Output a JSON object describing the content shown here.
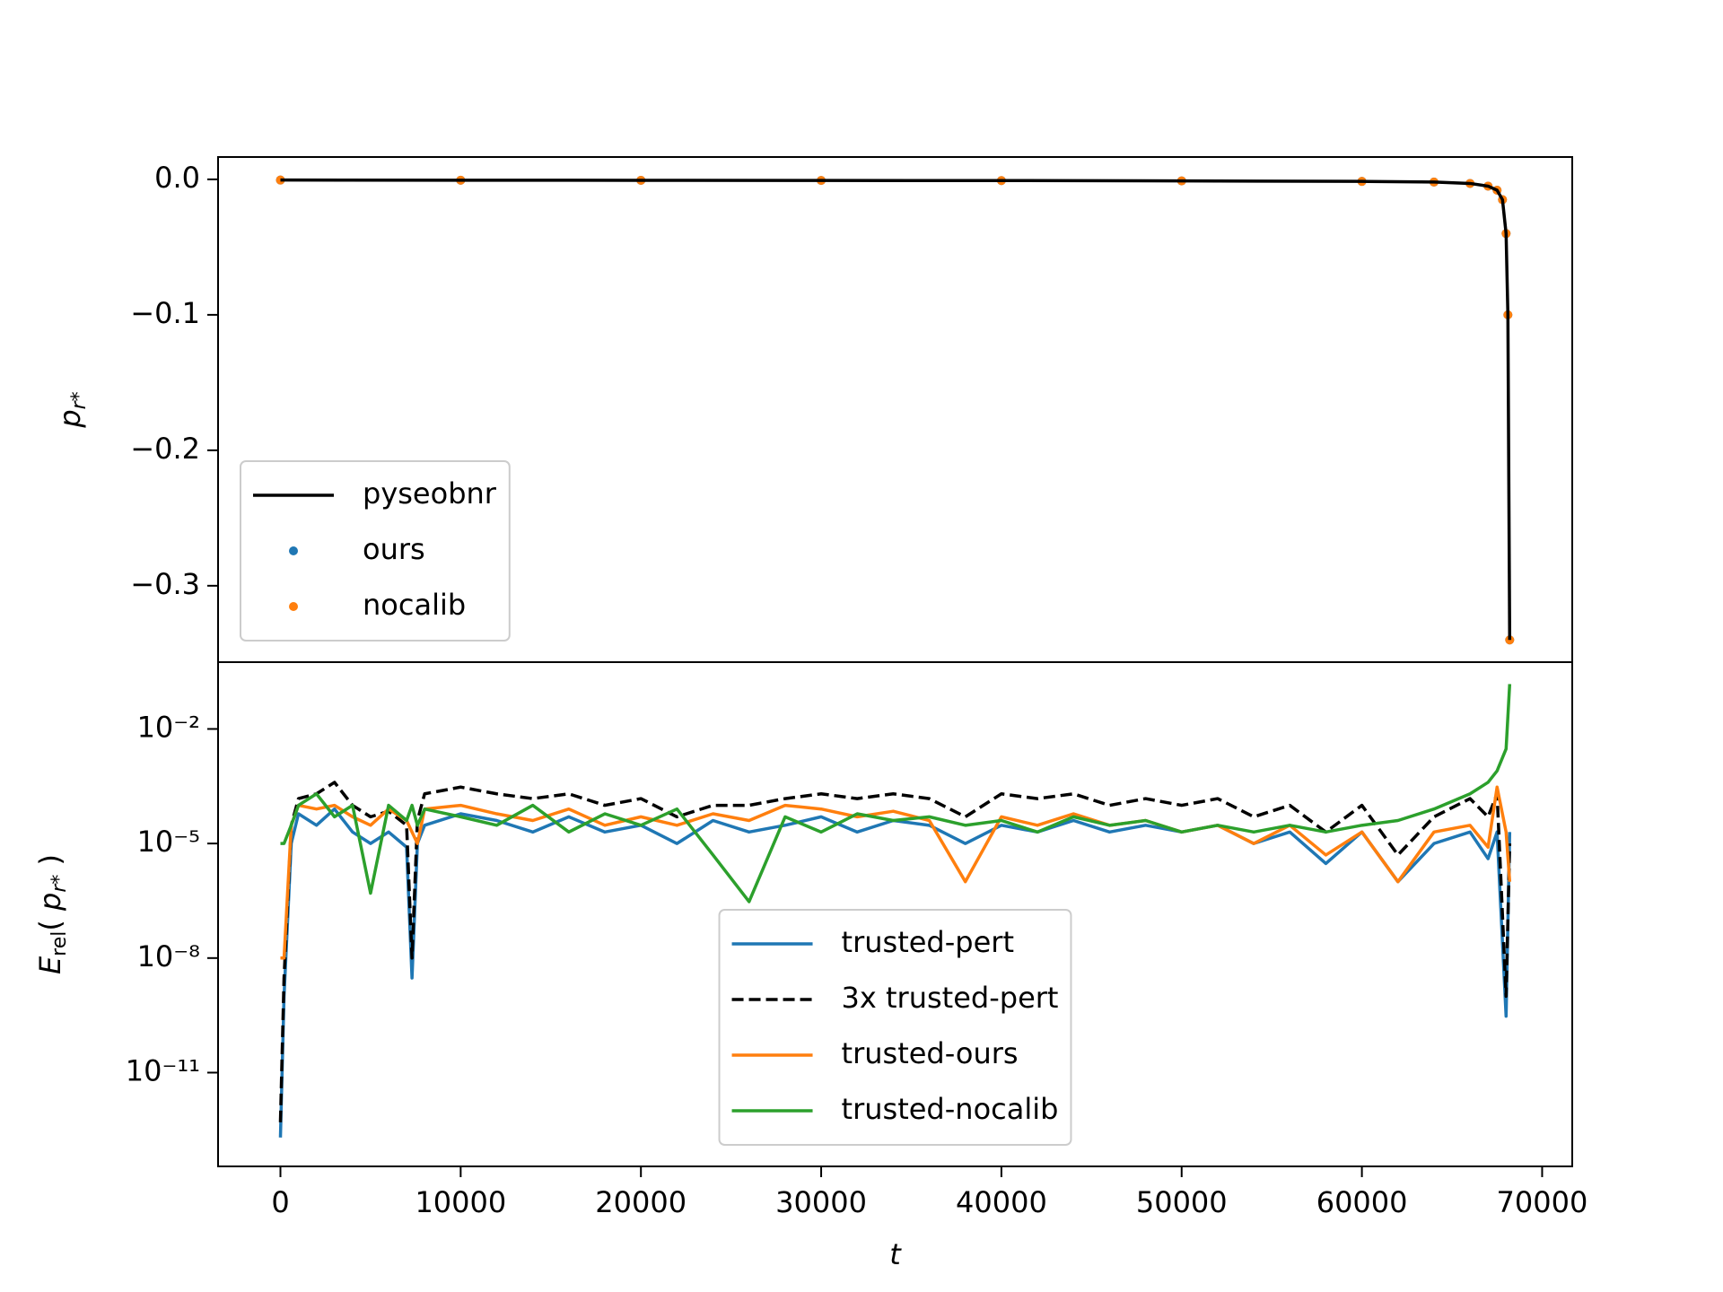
{
  "chart_data": [
    {
      "type": "line",
      "ylabel": [
        {
          "text": "p",
          "italic": true
        },
        {
          "text": "r*",
          "sub": true,
          "italic": true
        }
      ],
      "xlim": [
        -3460,
        71670
      ],
      "ylim": [
        -0.3564,
        0.0165
      ],
      "yticks": [
        {
          "value": 0.0,
          "label": "0.0"
        },
        {
          "value": -0.1,
          "label": "−0.1"
        },
        {
          "value": -0.2,
          "label": "−0.2"
        },
        {
          "value": -0.3,
          "label": "−0.3"
        }
      ],
      "legend": "lower left",
      "x": [
        0,
        10000,
        20000,
        30000,
        40000,
        50000,
        60000,
        64000,
        66000,
        67000,
        67500,
        67800,
        68000,
        68100,
        68200
      ],
      "series": [
        {
          "name": "pyseobnr",
          "color": "#000000",
          "values": [
            -0.0005,
            -0.0006,
            -0.0007,
            -0.0008,
            -0.0009,
            -0.0011,
            -0.0015,
            -0.002,
            -0.003,
            -0.005,
            -0.008,
            -0.015,
            -0.04,
            -0.1,
            -0.34
          ]
        },
        {
          "name": "ours",
          "color": "#1f77b4",
          "marker": "dot",
          "values": [
            -0.0005,
            -0.0006,
            -0.0007,
            -0.0008,
            -0.0009,
            -0.0011,
            -0.0015,
            -0.002,
            -0.003,
            -0.005,
            -0.008,
            -0.015,
            -0.04,
            -0.1,
            -0.34
          ]
        },
        {
          "name": "nocalib",
          "color": "#ff7f0e",
          "marker": "dot",
          "values": [
            -0.0005,
            -0.0006,
            -0.0007,
            -0.0008,
            -0.0009,
            -0.0011,
            -0.0015,
            -0.002,
            -0.003,
            -0.005,
            -0.008,
            -0.015,
            -0.04,
            -0.1,
            -0.34
          ]
        }
      ]
    },
    {
      "type": "line",
      "xlabel": "t",
      "ylabel": [
        {
          "text": "E",
          "italic": true
        },
        {
          "text": "rel",
          "sub": true
        },
        {
          "text": "( "
        },
        {
          "text": "p",
          "italic": true
        },
        {
          "text": "r*",
          "sub": true,
          "italic": true
        },
        {
          "text": " )"
        }
      ],
      "yscale": "log",
      "xlim": [
        -3460,
        71670
      ],
      "ylim": [
        3.5e-14,
        0.562
      ],
      "xticks": [
        0,
        10000,
        20000,
        30000,
        40000,
        50000,
        60000,
        70000
      ],
      "yticks": [
        {
          "value": 0.01,
          "label": "10⁻²"
        },
        {
          "value": 1e-05,
          "label": "10⁻⁵"
        },
        {
          "value": 1e-08,
          "label": "10⁻⁸"
        },
        {
          "value": 1e-11,
          "label": "10⁻¹¹"
        }
      ],
      "legend": "lower center",
      "x": [
        0,
        200,
        600,
        1000,
        2000,
        3000,
        4000,
        5000,
        6000,
        7000,
        7300,
        7600,
        8000,
        10000,
        12000,
        14000,
        16000,
        18000,
        20000,
        22000,
        24000,
        26000,
        28000,
        30000,
        32000,
        34000,
        36000,
        38000,
        40000,
        42000,
        44000,
        46000,
        48000,
        50000,
        52000,
        54000,
        56000,
        58000,
        60000,
        62000,
        64000,
        66000,
        67000,
        67500,
        68000,
        68200
      ],
      "series": [
        {
          "name": "trusted-pert",
          "color": "#1f77b4",
          "values": [
            2e-13,
            1e-09,
            1e-05,
            6e-05,
            3e-05,
            8e-05,
            2e-05,
            1e-05,
            2e-05,
            8e-06,
            3e-09,
            1e-05,
            3e-05,
            6e-05,
            4e-05,
            2e-05,
            5e-05,
            2e-05,
            3e-05,
            1e-05,
            4e-05,
            2e-05,
            3e-05,
            5e-05,
            2e-05,
            4e-05,
            3e-05,
            1e-05,
            3e-05,
            2e-05,
            4e-05,
            2e-05,
            3e-05,
            2e-05,
            3e-05,
            1e-05,
            2e-05,
            3e-06,
            2e-05,
            1e-06,
            1e-05,
            2e-05,
            4e-06,
            2e-05,
            3e-10,
            2e-05
          ]
        },
        {
          "name": "3x trusted-pert",
          "color": "#000000",
          "dash": true,
          "values": [
            5e-13,
            3e-09,
            3e-05,
            0.00015,
            0.0002,
            0.0004,
            0.0001,
            5e-05,
            7e-05,
            3e-05,
            1e-08,
            4e-05,
            0.0002,
            0.0003,
            0.0002,
            0.00015,
            0.0002,
            0.0001,
            0.00015,
            5e-05,
            0.0001,
            0.0001,
            0.00015,
            0.0002,
            0.00015,
            0.0002,
            0.00015,
            5e-05,
            0.0002,
            0.00015,
            0.0002,
            0.0001,
            0.00015,
            0.0001,
            0.00015,
            5e-05,
            0.0001,
            2e-05,
            0.0001,
            5e-06,
            5e-05,
            0.00015,
            5e-05,
            0.0002,
            1e-09,
            1e-05
          ]
        },
        {
          "name": "trusted-ours",
          "color": "#ff7f0e",
          "values": [
            1e-08,
            1e-08,
            3e-05,
            0.0001,
            8e-05,
            0.0001,
            5e-05,
            3e-05,
            8e-05,
            4e-05,
            2e-05,
            1e-05,
            8e-05,
            0.0001,
            6e-05,
            4e-05,
            8e-05,
            3e-05,
            5e-05,
            3e-05,
            6e-05,
            4e-05,
            0.0001,
            8e-05,
            5e-05,
            7e-05,
            4e-05,
            1e-06,
            5e-05,
            3e-05,
            6e-05,
            3e-05,
            4e-05,
            2e-05,
            3e-05,
            1e-05,
            3e-05,
            5e-06,
            2e-05,
            1e-06,
            2e-05,
            3e-05,
            8e-06,
            0.0003,
            2e-05,
            1e-06
          ]
        },
        {
          "name": "trusted-nocalib",
          "color": "#2ca02c",
          "values": [
            1e-05,
            1e-05,
            3e-05,
            0.0001,
            0.0002,
            5e-05,
            0.0001,
            5e-07,
            0.0001,
            4e-05,
            0.0001,
            3e-05,
            8e-05,
            5e-05,
            3e-05,
            0.0001,
            2e-05,
            6e-05,
            3e-05,
            8e-05,
            5e-06,
            3e-07,
            5e-05,
            2e-05,
            6e-05,
            4e-05,
            5e-05,
            3e-05,
            4e-05,
            2e-05,
            5e-05,
            3e-05,
            4e-05,
            2e-05,
            3e-05,
            2e-05,
            3e-05,
            2e-05,
            3e-05,
            4e-05,
            8e-05,
            0.0002,
            0.0004,
            0.0008,
            0.003,
            0.15
          ]
        }
      ]
    }
  ]
}
